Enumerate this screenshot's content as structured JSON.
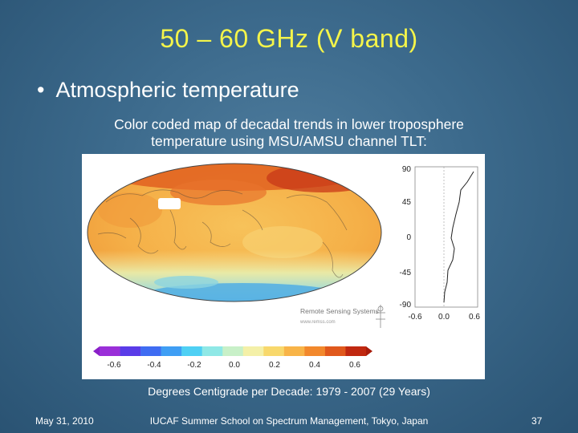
{
  "slide": {
    "title": "50 – 60 GHz (V band)",
    "bullet": "Atmospheric temperature",
    "caption_line1": "Color coded map of decadal trends in lower troposphere",
    "caption_line2": "temperature using MSU/AMSU channel TLT:",
    "units_caption": "Degrees Centigrade per Decade: 1979 - 2007 (29 Years)"
  },
  "figure": {
    "credit_line1": "Remote Sensing Systems",
    "credit_line2": "www.remss.com",
    "colorbar_colors": [
      "#9a2fd8",
      "#5a3ce8",
      "#3f6cf2",
      "#3f9ef4",
      "#4fd0f4",
      "#8fe8e6",
      "#c8f0c8",
      "#f4f0a8",
      "#f8d86c",
      "#f8b448",
      "#f2882c",
      "#e0581c",
      "#c02810"
    ],
    "colorbar": {
      "ticks": [
        "-0.6",
        "-0.4",
        "-0.2",
        "0.0",
        "0.2",
        "0.4",
        "0.6"
      ]
    },
    "profile": {
      "y_ticks": [
        "90",
        "45",
        "0",
        "-45",
        "-90"
      ],
      "x_ticks": [
        "-0.6",
        "0.0",
        "0.6"
      ]
    }
  },
  "footer": {
    "date": "May 31, 2010",
    "event": "IUCAF Summer School on Spectrum Management, Tokyo, Japan",
    "page": "37"
  }
}
